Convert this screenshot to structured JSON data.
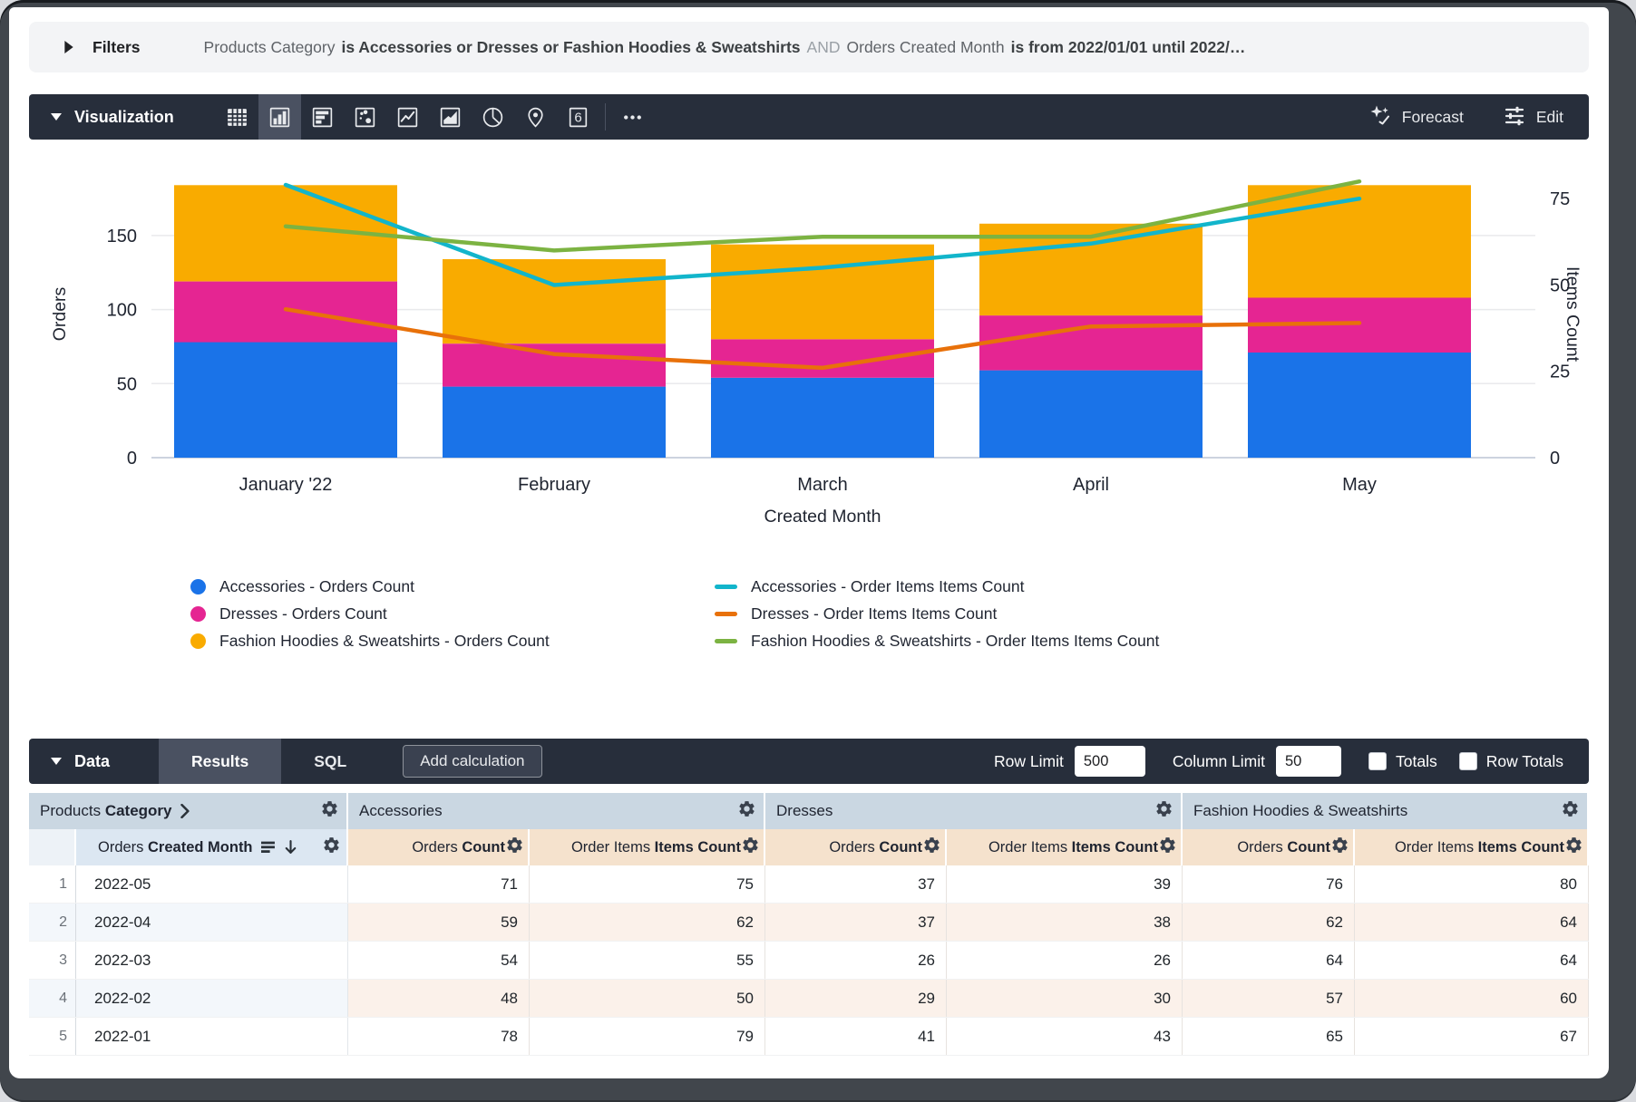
{
  "filters": {
    "toggle_label": "Filters",
    "parts": [
      {
        "style": "field",
        "text": "Products Category"
      },
      {
        "style": "value",
        "text": "is Accessories or Dresses or Fashion Hoodies & Sweatshirts"
      },
      {
        "style": "and",
        "text": "AND"
      },
      {
        "style": "field",
        "text": "Orders Created Month"
      },
      {
        "style": "value",
        "text": "is from 2022/01/01 until 2022/…"
      }
    ]
  },
  "viz_toolbar": {
    "label": "Visualization",
    "forecast_label": "Forecast",
    "edit_label": "Edit",
    "icons": [
      {
        "name": "table-chart"
      },
      {
        "name": "column-chart",
        "selected": true
      },
      {
        "name": "bar-chart"
      },
      {
        "name": "scatter-chart"
      },
      {
        "name": "line-chart"
      },
      {
        "name": "area-chart"
      },
      {
        "name": "pie-chart"
      },
      {
        "name": "map-pin"
      },
      {
        "name": "single-value",
        "glyph": "6"
      },
      {
        "name": "divider"
      },
      {
        "name": "more-options"
      }
    ]
  },
  "chart_data": {
    "type": "combo",
    "categories": [
      "January '22",
      "February",
      "March",
      "April",
      "May"
    ],
    "x_axis_title": "Created Month",
    "y_left": {
      "title": "Orders",
      "ticks": [
        0,
        50,
        100,
        150
      ],
      "max": 194
    },
    "y_right": {
      "title": "Items Count",
      "ticks": [
        0,
        25,
        50,
        75
      ],
      "max": 83.2
    },
    "bar_series": [
      {
        "name": "Accessories - Orders Count",
        "color": "#1A73E8",
        "values": [
          78,
          48,
          54,
          59,
          71
        ]
      },
      {
        "name": "Dresses - Orders Count",
        "color": "#E52592",
        "values": [
          41,
          29,
          26,
          37,
          37
        ]
      },
      {
        "name": "Fashion Hoodies & Sweatshirts - Orders Count",
        "color": "#F9AB00",
        "values": [
          65,
          57,
          64,
          62,
          76
        ]
      }
    ],
    "line_series": [
      {
        "name": "Accessories - Order Items Items Count",
        "color": "#12B5CB",
        "values": [
          79,
          50,
          55,
          62,
          75
        ]
      },
      {
        "name": "Dresses - Order Items Items Count",
        "color": "#E8710A",
        "values": [
          43,
          30,
          26,
          38,
          39
        ]
      },
      {
        "name": "Fashion Hoodies & Sweatshirts - Order Items Items Count",
        "color": "#7CB342",
        "values": [
          67,
          60,
          64,
          64,
          80
        ]
      }
    ],
    "legend_position": "bottom",
    "grid": true,
    "stacked_bars": true
  },
  "data_toolbar": {
    "label": "Data",
    "tabs": [
      "Results",
      "SQL"
    ],
    "active_tab": "Results",
    "add_calculation_label": "Add calculation",
    "row_limit_label": "Row Limit",
    "row_limit_value": "500",
    "column_limit_label": "Column Limit",
    "column_limit_value": "50",
    "totals_label": "Totals",
    "row_totals_label": "Row Totals",
    "totals_checked": false,
    "row_totals_checked": false
  },
  "table": {
    "group_headers": [
      {
        "regular": "Products",
        "bold": "Category",
        "chevron": true
      },
      {
        "label": "Accessories"
      },
      {
        "label": "Dresses"
      },
      {
        "label": "Fashion Hoodies & Sweatshirts"
      }
    ],
    "dimension_header": {
      "regular": "Orders",
      "bold": "Created Month"
    },
    "measure_headers": [
      {
        "regular": "Orders",
        "bold": "Count"
      },
      {
        "regular": "Order Items",
        "bold": "Items Count"
      }
    ],
    "rows": [
      {
        "n": "1",
        "month": "2022-05",
        "values": [
          71,
          75,
          37,
          39,
          76,
          80
        ]
      },
      {
        "n": "2",
        "month": "2022-04",
        "values": [
          59,
          62,
          37,
          38,
          62,
          64
        ]
      },
      {
        "n": "3",
        "month": "2022-03",
        "values": [
          54,
          55,
          26,
          26,
          64,
          64
        ]
      },
      {
        "n": "4",
        "month": "2022-02",
        "values": [
          48,
          50,
          29,
          30,
          57,
          60
        ]
      },
      {
        "n": "5",
        "month": "2022-01",
        "values": [
          78,
          79,
          41,
          43,
          65,
          67
        ]
      }
    ]
  }
}
